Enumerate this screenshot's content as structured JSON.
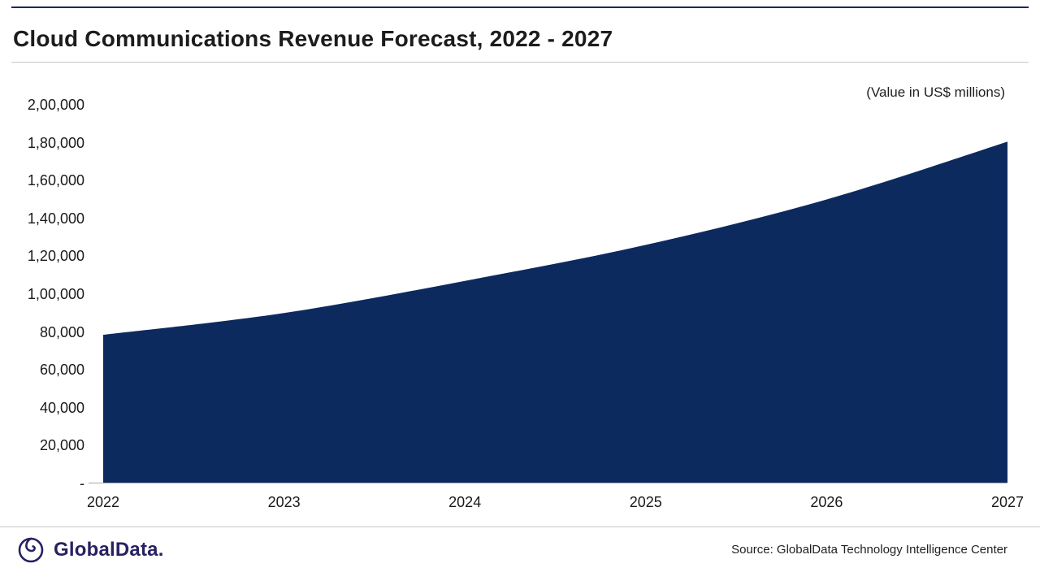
{
  "page": {
    "title": "Cloud Communications Revenue Forecast, 2022 - 2027",
    "unit_note": "(Value in US$ millions)"
  },
  "footer": {
    "logo_text": "GlobalData.",
    "source": "Source: GlobalData Technology Intelligence Center"
  },
  "colors": {
    "area_fill": "#0d2a5f",
    "logo_navy": "#262262",
    "axis_line": "#a6a6a6",
    "rule_dark": "#0d2a5f"
  },
  "chart_data": {
    "type": "area",
    "title": "Cloud Communications Revenue Forecast, 2022 - 2027",
    "unit_note": "(Value in US$ millions)",
    "categories": [
      "2022",
      "2023",
      "2024",
      "2025",
      "2026",
      "2027"
    ],
    "values": [
      78500,
      90000,
      107000,
      126000,
      150000,
      180500
    ],
    "ylim": [
      0,
      200000
    ],
    "ytick_values": [
      0,
      20000,
      40000,
      60000,
      80000,
      100000,
      120000,
      140000,
      160000,
      180000,
      200000
    ],
    "ytick_labels": [
      "-",
      "20,000",
      "40,000",
      "60,000",
      "80,000",
      "1,00,000",
      "1,20,000",
      "1,40,000",
      "1,60,000",
      "1,80,000",
      "2,00,000"
    ],
    "grid": false,
    "legend": false,
    "fill_color": "#0d2a5f"
  }
}
